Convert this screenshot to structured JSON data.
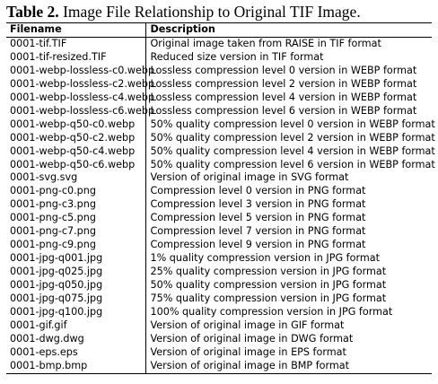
{
  "caption": {
    "label": "Table 2.",
    "text": " Image File Relationship to Original TIF Image."
  },
  "table": {
    "headers": [
      "Filename",
      "Description"
    ],
    "rows": [
      [
        "0001-tif.TIF",
        "Original image taken from RAISE in TIF format"
      ],
      [
        "0001-tif-resized.TIF",
        "Reduced size version in TIF format"
      ],
      [
        "0001-webp-lossless-c0.webp",
        "Lossless compression level 0 version in WEBP format"
      ],
      [
        "0001-webp-lossless-c2.webp",
        "Lossless compression level 2 version in WEBP format"
      ],
      [
        "0001-webp-lossless-c4.webp",
        "Lossless compression level 4 version in WEBP format"
      ],
      [
        "0001-webp-lossless-c6.webp",
        "Lossless compression level 6 version in WEBP format"
      ],
      [
        "0001-webp-q50-c0.webp",
        "50% quality compression level 0 version in WEBP format"
      ],
      [
        "0001-webp-q50-c2.webp",
        "50% quality compression level 2 version in WEBP format"
      ],
      [
        "0001-webp-q50-c4.webp",
        "50% quality compression level 4 version in WEBP format"
      ],
      [
        "0001-webp-q50-c6.webp",
        "50% quality compression level 6 version in WEBP format"
      ],
      [
        "0001-svg.svg",
        "Version of original image in SVG format"
      ],
      [
        "0001-png-c0.png",
        "Compression level 0 version in PNG format"
      ],
      [
        "0001-png-c3.png",
        "Compression level 3 version in PNG format"
      ],
      [
        "0001-png-c5.png",
        "Compression level 5 version in PNG format"
      ],
      [
        "0001-png-c7.png",
        "Compression level 7 version in PNG format"
      ],
      [
        "0001-png-c9.png",
        "Compression level 9 version in PNG format"
      ],
      [
        "0001-jpg-q001.jpg",
        "1% quality compression version in JPG format"
      ],
      [
        "0001-jpg-q025.jpg",
        "25% quality compression version in JPG format"
      ],
      [
        "0001-jpg-q050.jpg",
        "50% quality compression version in JPG format"
      ],
      [
        "0001-jpg-q075.jpg",
        "75% quality compression version in JPG format"
      ],
      [
        "0001-jpg-q100.jpg",
        "100% quality compression version in JPG format"
      ],
      [
        "0001-gif.gif",
        "Version of original image in GIF format"
      ],
      [
        "0001-dwg.dwg",
        "Version of original image in DWG format"
      ],
      [
        "0001-eps.eps",
        "Version of original image in EPS format"
      ],
      [
        "0001-bmp.bmp",
        "Version of original image in BMP format"
      ]
    ]
  }
}
